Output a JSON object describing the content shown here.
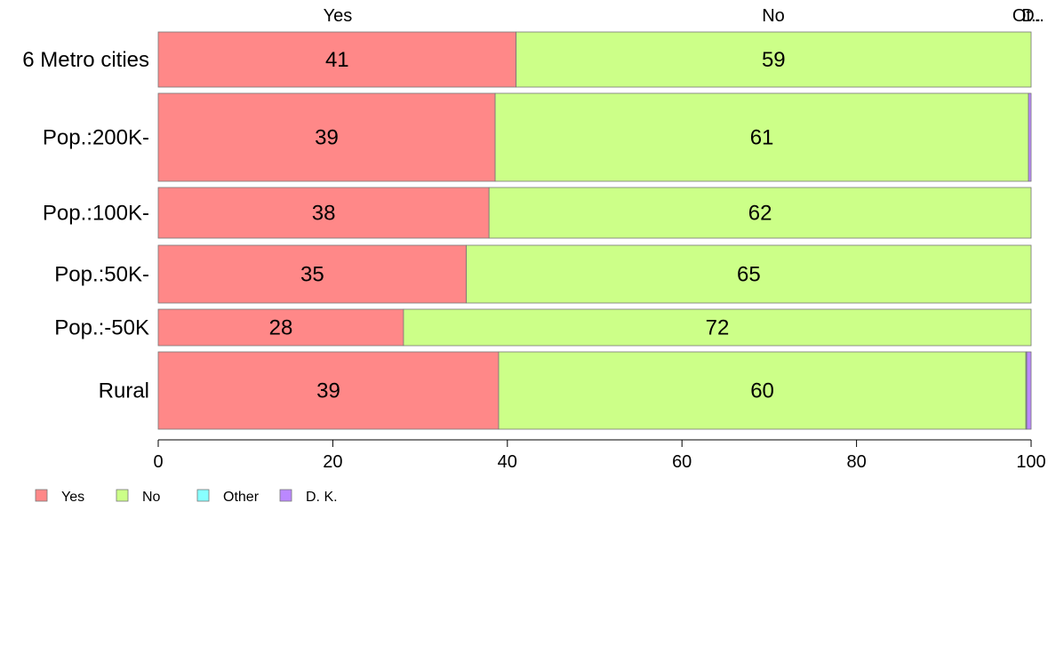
{
  "chart_data": {
    "type": "bar",
    "orientation": "horizontal",
    "stacked": true,
    "categories": [
      "6 Metro cities",
      "Pop.:200K-",
      "Pop.:100K-",
      "Pop.:50K-",
      "Pop.:-50K",
      "Rural"
    ],
    "series": [
      {
        "name": "Yes",
        "color": "#ff8888",
        "values": [
          41,
          38.6,
          37.9,
          35.3,
          28.1,
          39.0
        ]
      },
      {
        "name": "No",
        "color": "#ccff88",
        "values": [
          59,
          61.1,
          62.1,
          64.7,
          71.9,
          60.4
        ]
      },
      {
        "name": "Other",
        "color": "#88ffff",
        "values": [
          0,
          0,
          0,
          0,
          0,
          0.1
        ]
      },
      {
        "name": "D. K.",
        "color": "#bb88ff",
        "values": [
          0,
          0.3,
          0,
          0,
          0,
          0.5
        ]
      }
    ],
    "data_labels": [
      [
        "41",
        "59",
        "",
        ""
      ],
      [
        "39",
        "61",
        "",
        ""
      ],
      [
        "38",
        "62",
        "",
        ""
      ],
      [
        "35",
        "65",
        "",
        ""
      ],
      [
        "28",
        "72",
        "",
        ""
      ],
      [
        "39",
        "60",
        "",
        ""
      ]
    ],
    "top_labels": [
      "Yes",
      "No",
      "Ot..",
      "D.."
    ],
    "xlim": [
      0,
      100
    ],
    "xticks": [
      "0",
      "20",
      "40",
      "60",
      "80",
      "100"
    ],
    "legend": [
      "Yes",
      "No",
      "Other",
      "D. K."
    ],
    "legend_position": "bottom-left",
    "grid": false
  }
}
